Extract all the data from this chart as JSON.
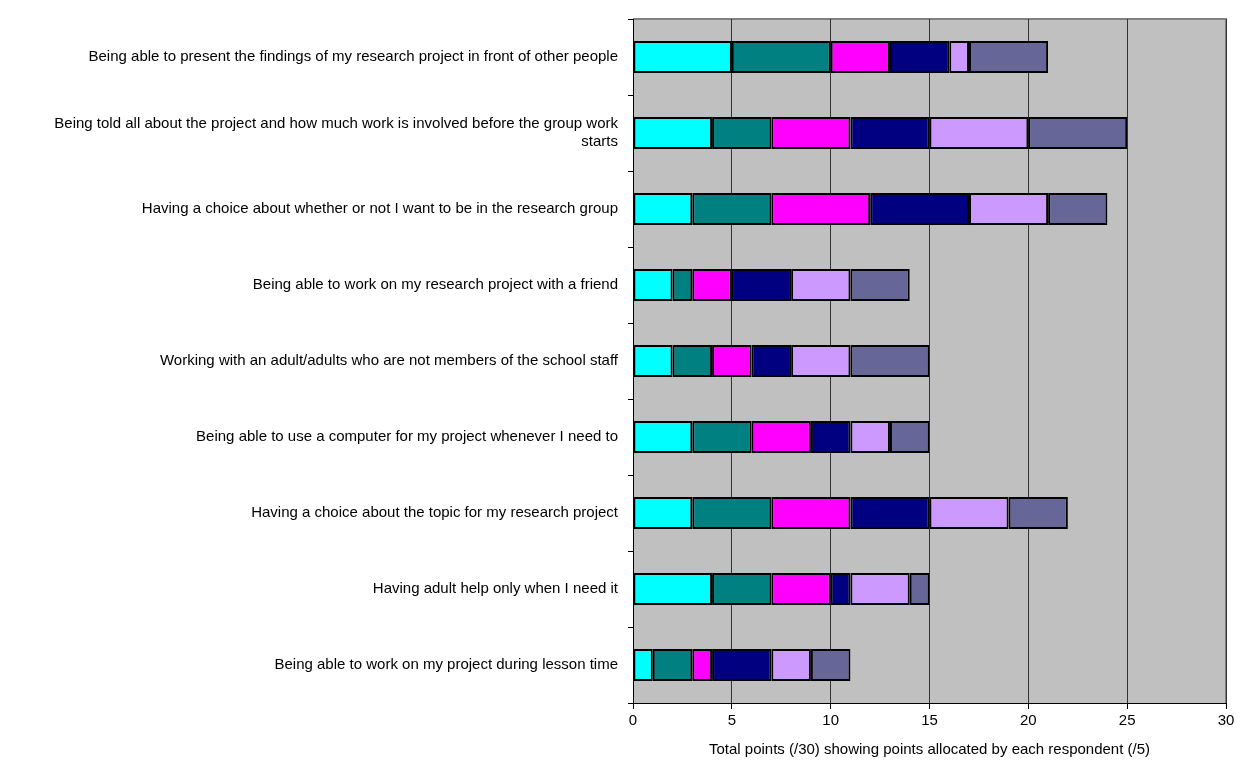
{
  "chart_data": {
    "type": "bar",
    "orientation": "horizontal",
    "stacked": true,
    "xlabel": "Total points (/30) showing points allocated by each respondent (/5)",
    "categories": [
      "Being able to present the findings of my research project in front of other people",
      "Being told all about the project and how much work is involved before the group work starts",
      "Having a choice about whether or not I want to be in the research group",
      "Being able to work on my research project with a friend",
      "Working with an adult/adults who are not members of the school staff",
      "Being able to use a computer for my project whenever I need to",
      "Having a choice about the topic for my research project",
      "Having adult help only when I need it",
      "Being able to work on my project during lesson time"
    ],
    "series": [
      {
        "color": "#00ffff",
        "values": [
          5,
          4,
          3,
          2,
          2,
          3,
          3,
          4,
          1
        ]
      },
      {
        "color": "#008080",
        "values": [
          5,
          3,
          4,
          1,
          2,
          3,
          4,
          3,
          2
        ]
      },
      {
        "color": "#ff00ff",
        "values": [
          3,
          4,
          5,
          2,
          2,
          3,
          4,
          3,
          1
        ]
      },
      {
        "color": "#000080",
        "values": [
          3,
          4,
          5,
          3,
          2,
          2,
          4,
          1,
          3
        ]
      },
      {
        "color": "#cc99ff",
        "values": [
          1,
          5,
          4,
          3,
          3,
          2,
          4,
          3,
          2
        ]
      },
      {
        "color": "#666699",
        "values": [
          4,
          5,
          3,
          3,
          4,
          2,
          3,
          1,
          2
        ]
      }
    ],
    "xlim": [
      0,
      30
    ],
    "xticks": [
      0,
      5,
      10,
      15,
      20,
      25,
      30
    ],
    "grid": "x",
    "legend": false
  }
}
